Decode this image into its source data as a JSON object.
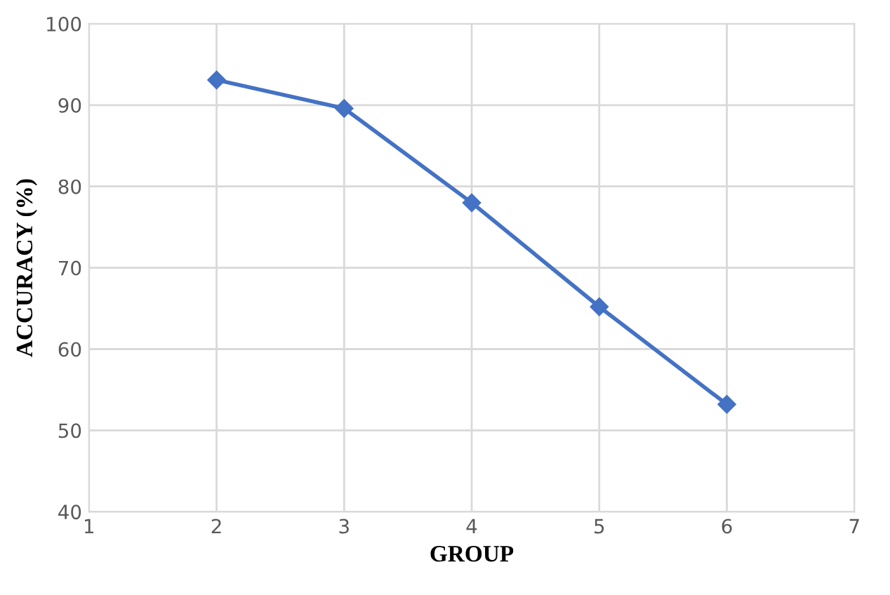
{
  "chart_data": {
    "type": "line",
    "xlabel": "GROUP",
    "ylabel": "ACCURACY (%)",
    "x": [
      2,
      3,
      4,
      5,
      6
    ],
    "series": [
      {
        "color": "#4472c4",
        "values": [
          93.1,
          89.6,
          78.0,
          65.2,
          53.2
        ]
      }
    ],
    "xlim": [
      1,
      7
    ],
    "xticks": [
      1,
      2,
      3,
      4,
      5,
      6,
      7
    ],
    "ylim": [
      40,
      100
    ],
    "yticks": [
      40,
      50,
      60,
      70,
      80,
      90,
      100
    ],
    "grid": true,
    "marker": "diamond",
    "line_style": "solid"
  }
}
